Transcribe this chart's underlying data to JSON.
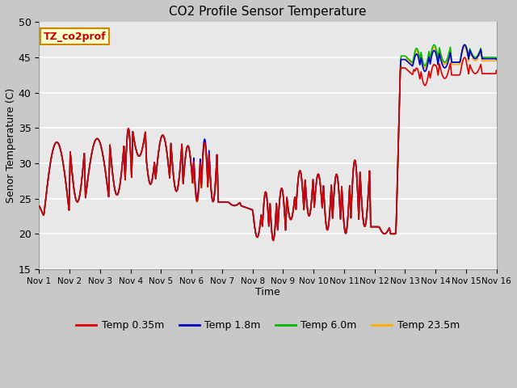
{
  "title": "CO2 Profile Sensor Temperature",
  "xlabel": "Time",
  "ylabel": "Senor Temperature (C)",
  "ylim": [
    15,
    50
  ],
  "annotation_text": "TZ_co2prof",
  "annotation_bg": "#ffffcc",
  "annotation_border": "#cc8800",
  "legend_labels": [
    "Temp 0.35m",
    "Temp 1.8m",
    "Temp 6.0m",
    "Temp 23.5m"
  ],
  "legend_colors": [
    "#dd0000",
    "#0000cc",
    "#00bb00",
    "#ffaa00"
  ],
  "fig_bg": "#c8c8c8",
  "plot_bg": "#e8e8e8",
  "grid_color": "#ffffff",
  "xtick_labels": [
    "Nov 1",
    "Nov 2",
    "Nov 3",
    "Nov 4",
    "Nov 5",
    "Nov 6",
    "Nov 7",
    "Nov 8",
    "Nov 9",
    "Nov 10",
    "Nov 11",
    "Nov 12",
    "Nov 13",
    "Nov 14",
    "Nov 15",
    "Nov 16"
  ],
  "ytick_values": [
    15,
    20,
    25,
    30,
    35,
    40,
    45,
    50
  ],
  "figsize": [
    6.4,
    4.8
  ],
  "dpi": 100
}
